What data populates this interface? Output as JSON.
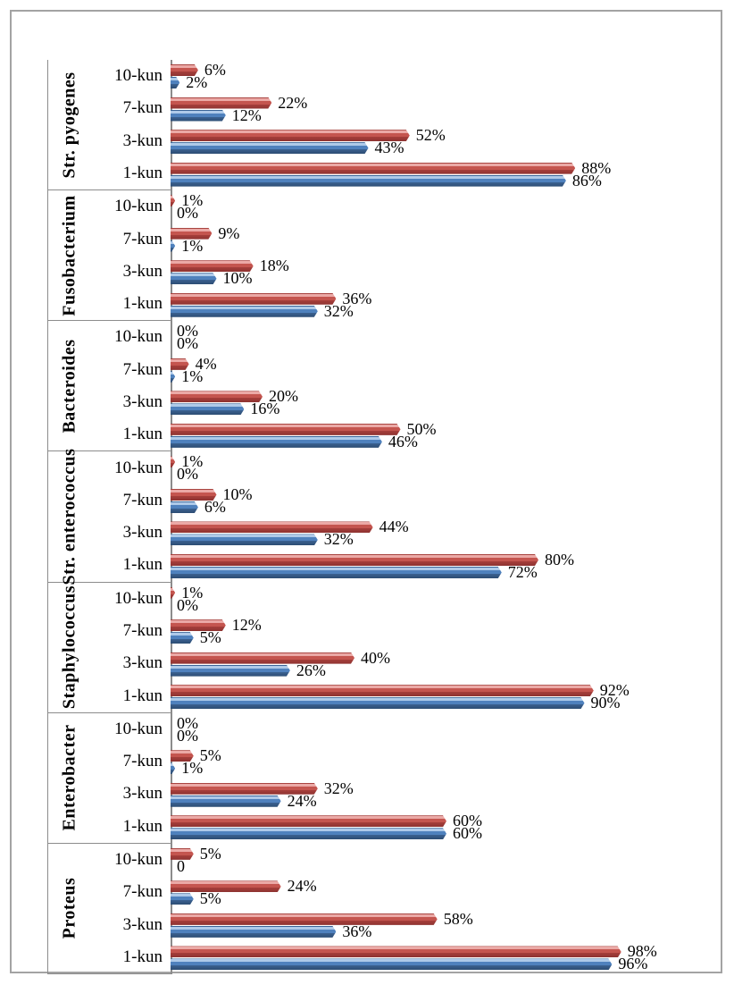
{
  "chart_data": {
    "type": "bar",
    "orientation": "horizontal",
    "unit": "percent",
    "title": "",
    "xlabel": "",
    "ylabel": "",
    "xlim": [
      0,
      100
    ],
    "grid": false,
    "legend": "none",
    "category_axis_levels": [
      "bacteria",
      "day"
    ],
    "time_labels": [
      "10-kun",
      "7-kun",
      "3-kun",
      "1-kun"
    ],
    "series_colors": {
      "red": "#c0504d",
      "blue": "#4f81bd"
    },
    "axis_color": "#8c8c8c",
    "groups": [
      {
        "name": "Str. pyogenes",
        "rows": [
          {
            "label": "10-kun",
            "red": 6,
            "blue": 2,
            "red_label": "6%",
            "blue_label": "2%"
          },
          {
            "label": "7-kun",
            "red": 22,
            "blue": 12,
            "red_label": "22%",
            "blue_label": "12%"
          },
          {
            "label": "3-kun",
            "red": 52,
            "blue": 43,
            "red_label": "52%",
            "blue_label": "43%"
          },
          {
            "label": "1-kun",
            "red": 88,
            "blue": 86,
            "red_label": "88%",
            "blue_label": "86%"
          }
        ]
      },
      {
        "name": "Fusobacterium",
        "rows": [
          {
            "label": "10-kun",
            "red": 1,
            "blue": 0,
            "red_label": "1%",
            "blue_label": "0%"
          },
          {
            "label": "7-kun",
            "red": 9,
            "blue": 1,
            "red_label": "9%",
            "blue_label": "1%"
          },
          {
            "label": "3-kun",
            "red": 18,
            "blue": 10,
            "red_label": "18%",
            "blue_label": "10%"
          },
          {
            "label": "1-kun",
            "red": 36,
            "blue": 32,
            "red_label": "36%",
            "blue_label": "32%"
          }
        ]
      },
      {
        "name": "Bacteroides",
        "rows": [
          {
            "label": "10-kun",
            "red": 0,
            "blue": 0,
            "red_label": "0%",
            "blue_label": "0%"
          },
          {
            "label": "7-kun",
            "red": 4,
            "blue": 1,
            "red_label": "4%",
            "blue_label": "1%"
          },
          {
            "label": "3-kun",
            "red": 20,
            "blue": 16,
            "red_label": "20%",
            "blue_label": "16%"
          },
          {
            "label": "1-kun",
            "red": 50,
            "blue": 46,
            "red_label": "50%",
            "blue_label": "46%"
          }
        ]
      },
      {
        "name": "Str. enterococcus",
        "rows": [
          {
            "label": "10-kun",
            "red": 1,
            "blue": 0,
            "red_label": "1%",
            "blue_label": "0%"
          },
          {
            "label": "7-kun",
            "red": 10,
            "blue": 6,
            "red_label": "10%",
            "blue_label": "6%"
          },
          {
            "label": "3-kun",
            "red": 44,
            "blue": 32,
            "red_label": "44%",
            "blue_label": "32%"
          },
          {
            "label": "1-kun",
            "red": 80,
            "blue": 72,
            "red_label": "80%",
            "blue_label": "72%"
          }
        ]
      },
      {
        "name": "Staphylococcus",
        "rows": [
          {
            "label": "10-kun",
            "red": 1,
            "blue": 0,
            "red_label": "1%",
            "blue_label": "0%"
          },
          {
            "label": "7-kun",
            "red": 12,
            "blue": 5,
            "red_label": "12%",
            "blue_label": "5%"
          },
          {
            "label": "3-kun",
            "red": 40,
            "blue": 26,
            "red_label": "40%",
            "blue_label": "26%"
          },
          {
            "label": "1-kun",
            "red": 92,
            "blue": 90,
            "red_label": "92%",
            "blue_label": "90%"
          }
        ]
      },
      {
        "name": "Enterobacter",
        "rows": [
          {
            "label": "10-kun",
            "red": 0,
            "blue": 0,
            "red_label": "0%",
            "blue_label": "0%"
          },
          {
            "label": "7-kun",
            "red": 5,
            "blue": 1,
            "red_label": "5%",
            "blue_label": "1%"
          },
          {
            "label": "3-kun",
            "red": 32,
            "blue": 24,
            "red_label": "32%",
            "blue_label": "24%"
          },
          {
            "label": "1-kun",
            "red": 60,
            "blue": 60,
            "red_label": "60%",
            "blue_label": "60%"
          }
        ]
      },
      {
        "name": "Proteus",
        "rows": [
          {
            "label": "10-kun",
            "red": 5,
            "blue": 0,
            "red_label": "5%",
            "blue_label": "0"
          },
          {
            "label": "7-kun",
            "red": 24,
            "blue": 5,
            "red_label": "24%",
            "blue_label": "5%"
          },
          {
            "label": "3-kun",
            "red": 58,
            "blue": 36,
            "red_label": "58%",
            "blue_label": "36%"
          },
          {
            "label": "1-kun",
            "red": 98,
            "blue": 96,
            "red_label": "98%",
            "blue_label": "96%"
          }
        ]
      }
    ]
  }
}
